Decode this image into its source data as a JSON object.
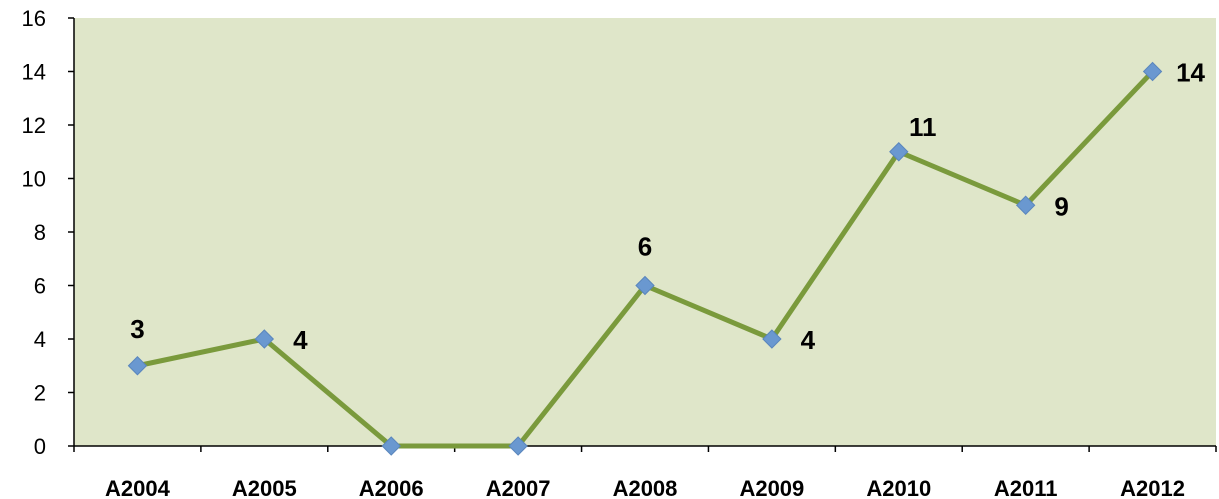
{
  "chart_data": {
    "type": "line",
    "title": "",
    "xlabel": "",
    "ylabel": "",
    "categories": [
      "A2004",
      "A2005",
      "A2006",
      "A2007",
      "A2008",
      "A2009",
      "A2010",
      "A2011",
      "A2012"
    ],
    "series": [
      {
        "values": [
          3,
          4,
          0,
          0,
          6,
          4,
          11,
          9,
          14
        ],
        "data_labels": [
          "3",
          "4",
          "",
          "",
          "6",
          "4",
          "11",
          "9",
          "14"
        ],
        "line_color": "#7a9a3c",
        "marker_color": "#6a98d0",
        "marker": "diamond"
      }
    ],
    "ylim": [
      0,
      16
    ],
    "yticks": [
      0,
      2,
      4,
      6,
      8,
      10,
      12,
      14,
      16
    ],
    "ytick_labels": [
      "0",
      "2",
      "4",
      "6",
      "8",
      "10",
      "12",
      "14",
      "16"
    ],
    "grid": false,
    "legend": "none",
    "plot_background": "#dfe6c9"
  }
}
